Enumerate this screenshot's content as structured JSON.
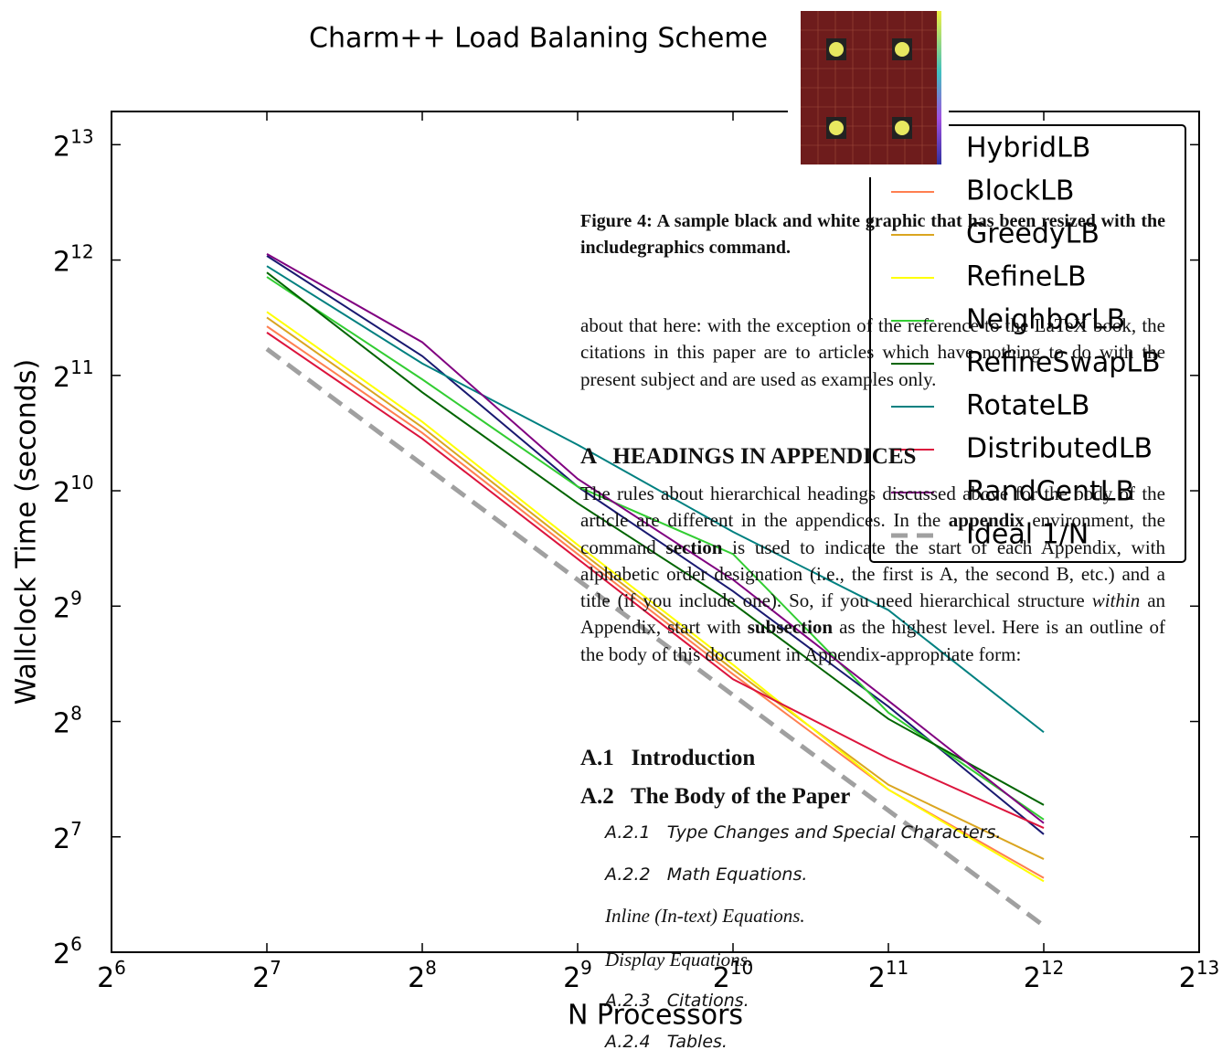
{
  "chart_data": {
    "type": "line",
    "title": "Charm++ Load Balaning Scheme",
    "x_label": "N Processors",
    "y_label": "Wallclock Time (seconds)",
    "xscale": "log",
    "yscale": "log",
    "log_base": 2,
    "x": [
      128,
      256,
      512,
      1024,
      2048,
      4096
    ],
    "xlim": [
      64,
      8192
    ],
    "ylim": [
      64,
      10000
    ],
    "xticks": [
      {
        "value": 64,
        "label": "2^6"
      },
      {
        "value": 128,
        "label": "2^7"
      },
      {
        "value": 256,
        "label": "2^8"
      },
      {
        "value": 512,
        "label": "2^9"
      },
      {
        "value": 1024,
        "label": "2^10"
      },
      {
        "value": 2048,
        "label": "2^11"
      },
      {
        "value": 4096,
        "label": "2^12"
      },
      {
        "value": 8192,
        "label": "2^13"
      }
    ],
    "yticks": [
      {
        "value": 64,
        "label": "2^6"
      },
      {
        "value": 128,
        "label": "2^7"
      },
      {
        "value": 256,
        "label": "2^8"
      },
      {
        "value": 512,
        "label": "2^9"
      },
      {
        "value": 1024,
        "label": "2^10"
      },
      {
        "value": 2048,
        "label": "2^11"
      },
      {
        "value": 4096,
        "label": "2^12"
      },
      {
        "value": 8192,
        "label": "2^13"
      }
    ],
    "grid": false,
    "legend": "upper right",
    "series": [
      {
        "name": "HybridLB",
        "color": "#191970",
        "values": [
          4200,
          2300,
          1050,
          560,
          280,
          130
        ]
      },
      {
        "name": "BlockLB",
        "color": "#ff7f50",
        "values": [
          2750,
          1450,
          700,
          340,
          170,
          100
        ]
      },
      {
        "name": "GreedyLB",
        "color": "#daa520",
        "values": [
          2900,
          1500,
          720,
          350,
          175,
          112
        ]
      },
      {
        "name": "RefineLB",
        "color": "#ffff00",
        "values": [
          3000,
          1550,
          740,
          360,
          170,
          98
        ]
      },
      {
        "name": "NeighborLB",
        "color": "#32cd32",
        "values": [
          3700,
          2000,
          1050,
          700,
          270,
          142
        ]
      },
      {
        "name": "RefineSwapLB",
        "color": "#006400",
        "values": [
          3800,
          1850,
          950,
          520,
          260,
          155
        ]
      },
      {
        "name": "RotateLB",
        "color": "#008080",
        "values": [
          3950,
          2200,
          1350,
          800,
          500,
          240
        ]
      },
      {
        "name": "DistributedLB",
        "color": "#dc143c",
        "values": [
          2650,
          1400,
          680,
          330,
          205,
          135
        ]
      },
      {
        "name": "RandCentLB",
        "color": "#800080",
        "values": [
          4250,
          2500,
          1100,
          600,
          290,
          139
        ]
      },
      {
        "name": "Ideal 1/N",
        "color": "#a0a0a0",
        "linestyle": "dashed",
        "values": [
          2400,
          1200,
          600,
          300,
          150,
          75
        ]
      }
    ]
  },
  "document": {
    "caption": "Figure 4: A sample black and white graphic that has been resized with the includegraphics command.",
    "paragraph1": "about that here: with the exception of the reference to the LaTeX book, the citations in this paper are to articles which have nothing to do with the present subject and are used as examples only.",
    "heading": "A   HEADINGS IN APPENDICES",
    "paragraph2": [
      "The rules about hierarchical headings discussed above for the body of the article are different in the appendices. In the",
      "appendix",
      "environment, the command",
      "section",
      "is used to indicate the start of each Appendix, with alphabetic order designation (i.e., the first is A, the second B, etc.) and a title (if you include one). So, if you need hierarchical structure",
      "within",
      "an Appendix, start with",
      "subsection",
      "as the highest level. Here is an outline of the body of this document in Appendix-appropriate form:"
    ],
    "outline": [
      "A.1   Introduction",
      "A.2   The Body of the Paper",
      "A.2.1   Type Changes and Special Characters.",
      "A.2.2   Math Equations.",
      "Inline (In-text) Equations.",
      "Display Equations.",
      "A.2.3   Citations.",
      "A.2.4   Tables."
    ]
  }
}
